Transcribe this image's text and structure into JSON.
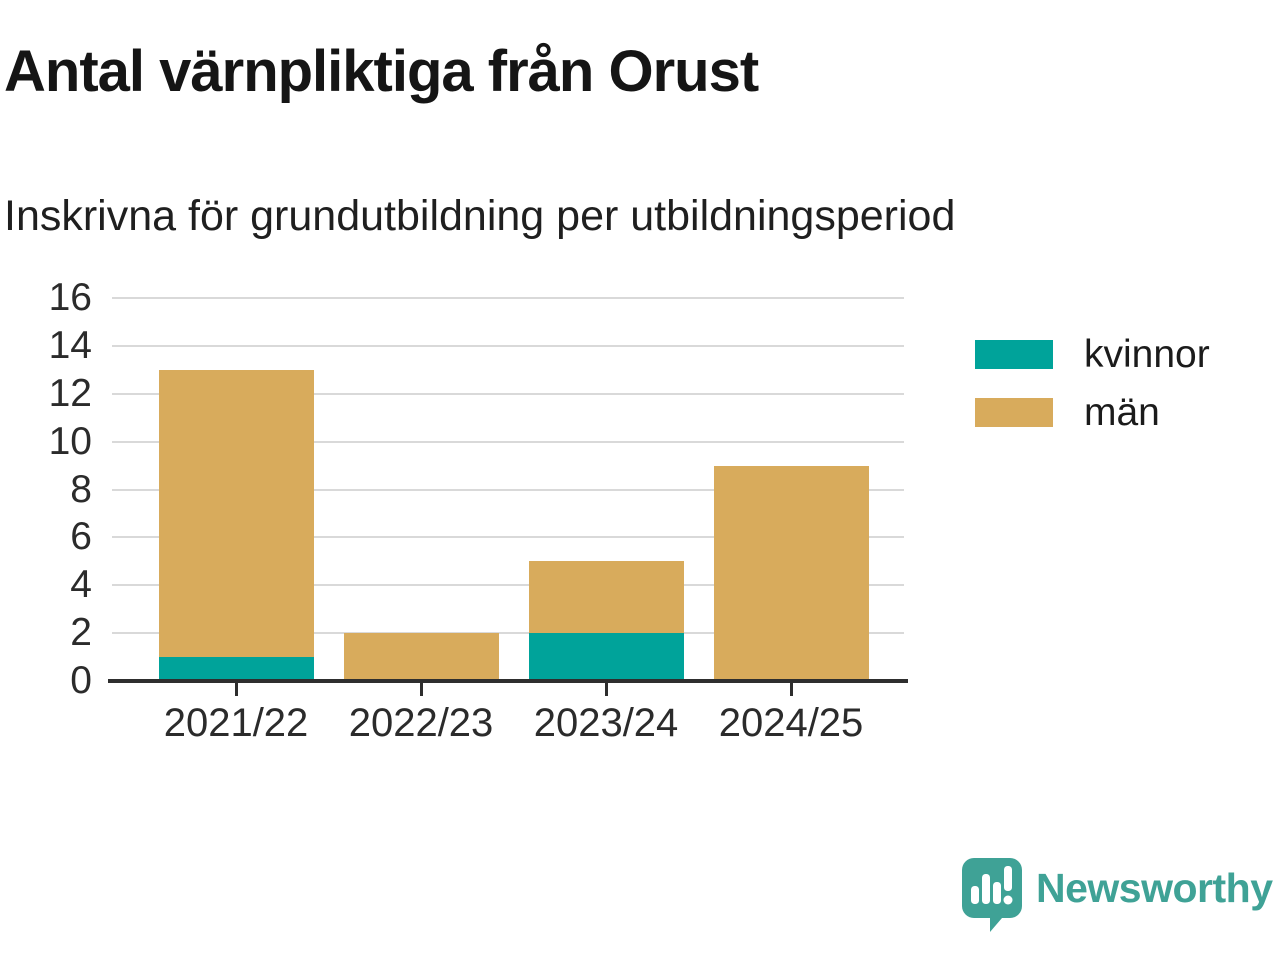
{
  "header": {
    "title": "Antal värnpliktiga från Orust",
    "subtitle": "Inskrivna för grundutbildning per utbildningsperiod"
  },
  "chart_data": {
    "type": "bar",
    "stacked": true,
    "title": "Antal värnpliktiga från Orust",
    "subtitle": "Inskrivna för grundutbildning per utbildningsperiod",
    "categories": [
      "2021/22",
      "2022/23",
      "2023/24",
      "2024/25"
    ],
    "series": [
      {
        "name": "kvinnor",
        "color": "#00A39A",
        "values": [
          1,
          0,
          2,
          0
        ]
      },
      {
        "name": "män",
        "color": "#D8AB5C",
        "values": [
          12,
          2,
          3,
          9
        ]
      }
    ],
    "totals": [
      13,
      2,
      5,
      9
    ],
    "xlabel": "",
    "ylabel": "",
    "ylim": [
      0,
      16
    ],
    "yticks": [
      0,
      2,
      4,
      6,
      8,
      10,
      12,
      14,
      16
    ],
    "grid": true,
    "legend_position": "right"
  },
  "footer": {
    "brand": "Newsworthy",
    "brand_color": "#3FA296",
    "logo_icon": "bar-chart-speech-bubble-icon"
  }
}
